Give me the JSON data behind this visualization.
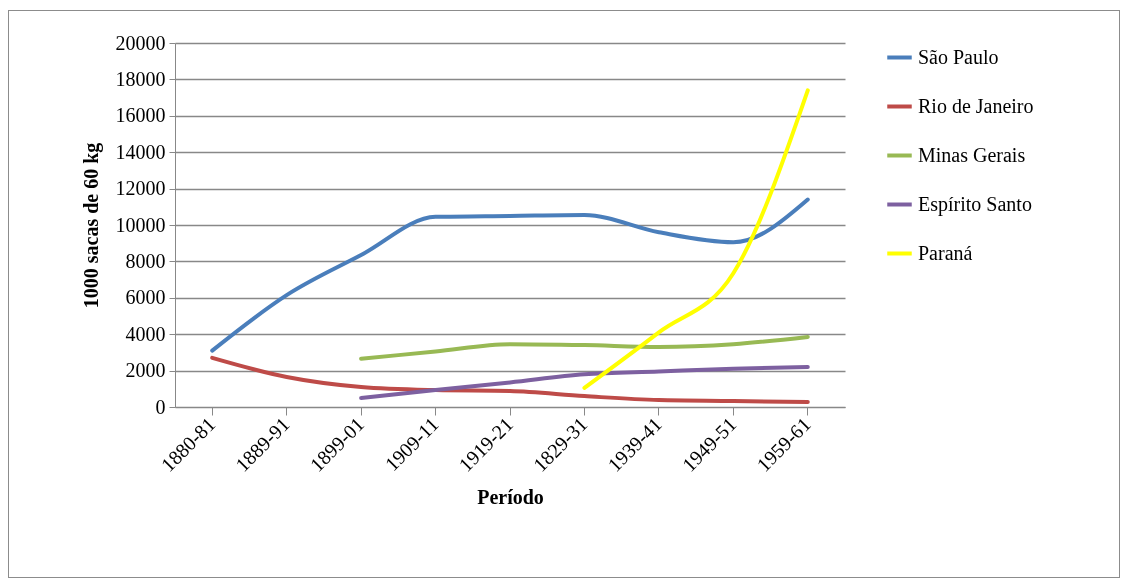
{
  "chart_data": {
    "type": "line",
    "xlabel": "Período",
    "ylabel": "1000 sacas de 60 kg",
    "categories": [
      "1880-81",
      "1889-91",
      "1899-01",
      "1909-11",
      "1919-21",
      "1829-31",
      "1939-41",
      "1949-51",
      "1959-61"
    ],
    "series": [
      {
        "name": "São Paulo",
        "color": "#4a7ebb",
        "values": [
          3100,
          6150,
          8350,
          10450,
          10500,
          10550,
          9600,
          9050,
          11400
        ]
      },
      {
        "name": "Rio de Janeiro",
        "color": "#be4b48",
        "values": [
          2700,
          1650,
          1100,
          930,
          880,
          600,
          380,
          330,
          270
        ]
      },
      {
        "name": "Minas Gerais",
        "color": "#98b954",
        "values": [
          null,
          null,
          2650,
          3050,
          3450,
          3400,
          3300,
          3450,
          3850
        ]
      },
      {
        "name": "Espírito Santo",
        "color": "#7d60a0",
        "values": [
          null,
          null,
          500,
          930,
          1350,
          1800,
          1950,
          2100,
          2200
        ]
      },
      {
        "name": "Paraná",
        "color": "#ffff00",
        "values": [
          null,
          null,
          null,
          null,
          null,
          1050,
          4100,
          7350,
          17400
        ]
      }
    ],
    "ylim": [
      0,
      20000
    ],
    "yticks": [
      0,
      2000,
      4000,
      6000,
      8000,
      10000,
      12000,
      14000,
      16000,
      18000,
      20000
    ],
    "grid": "y",
    "legend": "right",
    "marker": "none",
    "line_style": "solid"
  }
}
